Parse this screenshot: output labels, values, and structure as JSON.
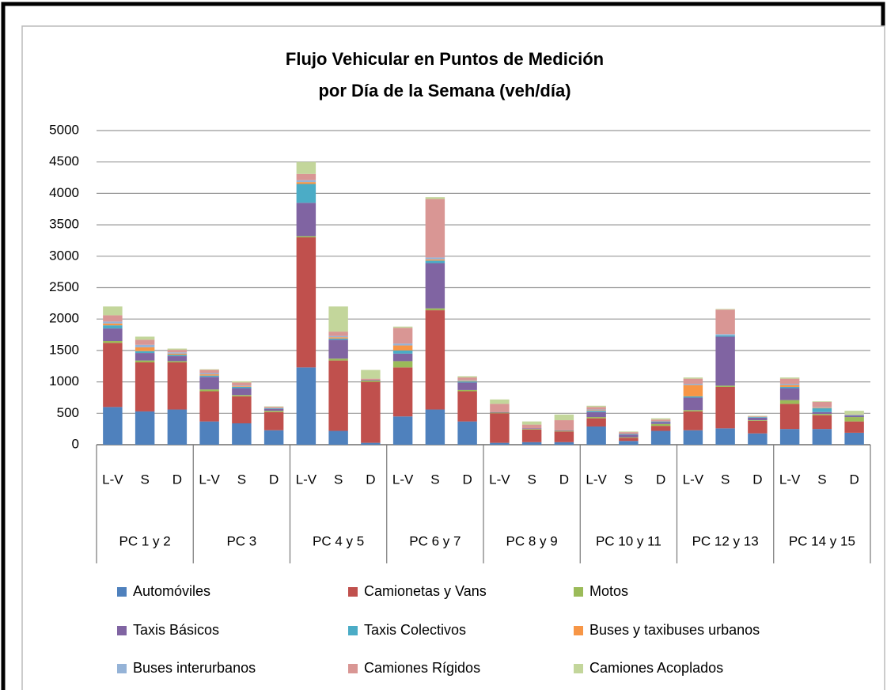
{
  "chart_data": {
    "type": "stacked_bar",
    "title": "Flujo Vehicular en Puntos de Medición",
    "subtitle": "por Día de la Semana (veh/día)",
    "categories": [
      "L-V",
      "S",
      "D",
      "L-V",
      "S",
      "D",
      "L-V",
      "S",
      "D",
      "L-V",
      "S",
      "D",
      "L-V",
      "S",
      "D",
      "L-V",
      "S",
      "D",
      "L-V",
      "S",
      "D",
      "L-V",
      "S",
      "D"
    ],
    "groups": [
      "PC 1 y 2",
      "PC 3",
      "PC 4 y 5",
      "PC 6 y 7",
      "PC 8 y 9",
      "PC 10 y 11",
      "PC 12 y 13",
      "PC 14 y 15"
    ],
    "ylim": [
      0,
      5000
    ],
    "yticks": [
      0,
      500,
      1000,
      1500,
      2000,
      2500,
      3000,
      3500,
      4000,
      4500,
      5000
    ],
    "grid": true,
    "legend": "bottom",
    "series": [
      {
        "name": "Automóviles",
        "color": "#4f81bd",
        "values": [
          600,
          530,
          560,
          370,
          340,
          230,
          1230,
          220,
          30,
          450,
          560,
          370,
          30,
          40,
          40,
          290,
          60,
          220,
          230,
          260,
          180,
          250,
          250,
          190
        ]
      },
      {
        "name": "Camionetas y Vans",
        "color": "#c0504d",
        "values": [
          1020,
          780,
          750,
          480,
          430,
          290,
          2070,
          1120,
          970,
          780,
          1580,
          480,
          470,
          200,
          170,
          130,
          50,
          80,
          300,
          660,
          200,
          400,
          220,
          180
        ]
      },
      {
        "name": "Motos",
        "color": "#9bbb59",
        "values": [
          30,
          30,
          20,
          30,
          20,
          20,
          20,
          30,
          20,
          100,
          30,
          20,
          10,
          10,
          10,
          20,
          10,
          30,
          20,
          20,
          10,
          60,
          20,
          70
        ]
      },
      {
        "name": "Taxis Básicos",
        "color": "#8064a2",
        "values": [
          200,
          120,
          80,
          200,
          110,
          30,
          530,
          300,
          10,
          120,
          720,
          120,
          10,
          10,
          10,
          80,
          40,
          30,
          200,
          780,
          40,
          190,
          30,
          20
        ]
      },
      {
        "name": "Taxis Colectivos",
        "color": "#4bacc6",
        "values": [
          50,
          30,
          20,
          20,
          20,
          10,
          300,
          20,
          0,
          50,
          40,
          20,
          0,
          0,
          0,
          20,
          10,
          10,
          20,
          20,
          10,
          20,
          60,
          10
        ]
      },
      {
        "name": "Buses y taxibuses urbanos",
        "color": "#f79646",
        "values": [
          30,
          60,
          20,
          20,
          10,
          0,
          30,
          20,
          0,
          80,
          20,
          10,
          0,
          0,
          0,
          10,
          0,
          0,
          180,
          0,
          0,
          30,
          10,
          0
        ]
      },
      {
        "name": "Buses interurbanos",
        "color": "#95b3d7",
        "values": [
          30,
          40,
          20,
          20,
          10,
          0,
          30,
          20,
          0,
          30,
          30,
          10,
          0,
          0,
          0,
          10,
          0,
          0,
          20,
          20,
          0,
          20,
          10,
          0
        ]
      },
      {
        "name": "Camiones Rígidos",
        "color": "#d99694",
        "values": [
          100,
          80,
          40,
          50,
          50,
          20,
          100,
          70,
          20,
          250,
          930,
          40,
          130,
          60,
          160,
          40,
          30,
          30,
          80,
          390,
          10,
          80,
          80,
          10
        ]
      },
      {
        "name": "Camiones Acoplados",
        "color": "#c3d69b",
        "values": [
          140,
          50,
          20,
          10,
          20,
          10,
          190,
          400,
          140,
          20,
          30,
          20,
          70,
          50,
          90,
          20,
          10,
          20,
          20,
          10,
          10,
          20,
          10,
          60
        ]
      }
    ]
  }
}
